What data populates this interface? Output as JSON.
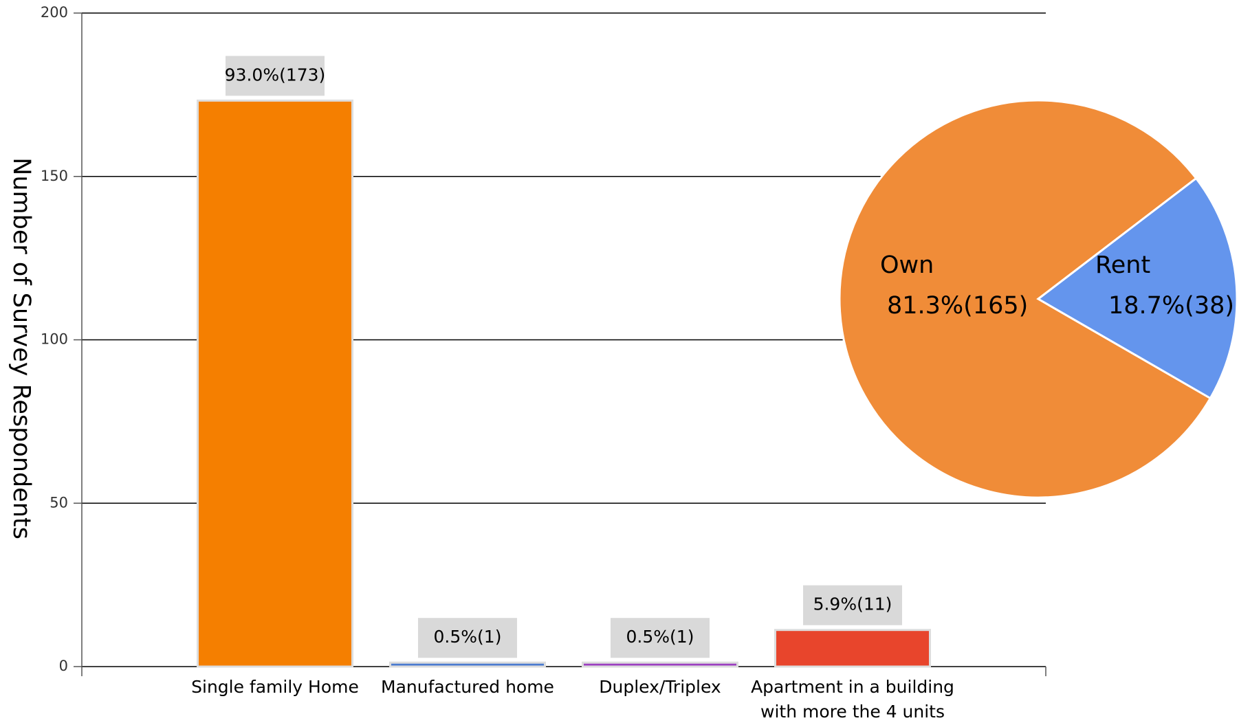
{
  "chart_data": [
    {
      "type": "bar",
      "ylabel": "Number of Survey Respondents",
      "categories": [
        "Single family Home",
        "Manufactured home",
        "Duplex/Triplex",
        "Apartment in a building with more the 4 units"
      ],
      "values": [
        173,
        1,
        1,
        11
      ],
      "value_labels": [
        "93.0%(173)",
        "0.5%(1)",
        "0.5%(1)",
        "5.9%(11)"
      ],
      "colors": [
        "#f57f00",
        "#4a7bd0",
        "#9b3fc0",
        "#e8452c"
      ],
      "ylim": [
        0,
        200
      ],
      "yticks": [
        0,
        50,
        100,
        150,
        200
      ],
      "grid": true
    },
    {
      "type": "pie",
      "categories": [
        "Own",
        "Rent"
      ],
      "values": [
        165,
        38
      ],
      "value_labels": [
        "81.3%(165)",
        "18.7%(38)"
      ],
      "colors": [
        "#f08c38",
        "#6495ed"
      ]
    }
  ]
}
